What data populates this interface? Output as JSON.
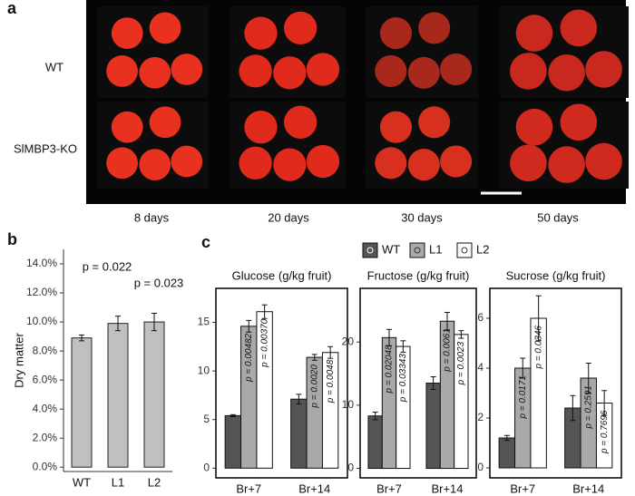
{
  "panel_labels": [
    "a",
    "b",
    "c"
  ],
  "panel_a": {
    "row_labels": [
      "WT",
      "SlMBP3-KO"
    ],
    "column_labels": [
      "8 days",
      "20 days",
      "30 days",
      "50 days"
    ]
  },
  "chart_data": [
    {
      "type": "bar",
      "y_label": "Dry matter",
      "categories": [
        "WT",
        "L1",
        "L2"
      ],
      "values": [
        8.9,
        9.9,
        10.0
      ],
      "errors": [
        0.2,
        0.5,
        0.6
      ],
      "color": "#c0c0c0",
      "ylim": [
        -0.3,
        15
      ],
      "yticks": [
        {
          "value": 0,
          "label": "0.0%"
        },
        {
          "value": 2,
          "label": "2.0%"
        },
        {
          "value": 4,
          "label": "4.0%"
        },
        {
          "value": 6,
          "label": "6.0%"
        },
        {
          "value": 8,
          "label": "8.0%"
        },
        {
          "value": 10,
          "label": "10.0%"
        },
        {
          "value": 12,
          "label": "12.0%"
        },
        {
          "value": 14,
          "label": "14.0%"
        }
      ],
      "annotations": [
        "p = 0.022",
        "p = 0.023"
      ]
    },
    {
      "type": "grouped-bar",
      "title": "Glucose (g/kg fruit)",
      "categories": [
        "Br+7",
        "Br+14"
      ],
      "ylim": [
        -1,
        18.5
      ],
      "yticks": [
        0,
        5,
        10,
        15
      ],
      "series": [
        {
          "name": "WT",
          "color": "#555555",
          "values": [
            5.4,
            7.1
          ],
          "errors": [
            0.1,
            0.5
          ]
        },
        {
          "name": "L1",
          "color": "#a9a9a9",
          "values": [
            14.6,
            11.4
          ],
          "errors": [
            0.6,
            0.3
          ],
          "p_labels": [
            "p = 0.00482",
            "p = 0.0020"
          ]
        },
        {
          "name": "L2",
          "color": "#ffffff",
          "values": [
            16.1,
            11.9
          ],
          "errors": [
            0.7,
            0.6
          ],
          "p_labels": [
            "p = 0.00370",
            "p = 0.0048"
          ]
        }
      ]
    },
    {
      "type": "grouped-bar",
      "title": "Fructose  (g/kg fruit)",
      "categories": [
        "Br+7",
        "Br+14"
      ],
      "ylim": [
        -1.5,
        28.5
      ],
      "yticks": [
        0,
        10,
        20
      ],
      "series": [
        {
          "name": "WT",
          "color": "#555555",
          "values": [
            8.3,
            13.5
          ],
          "errors": [
            0.6,
            1.0
          ]
        },
        {
          "name": "L1",
          "color": "#a9a9a9",
          "values": [
            20.7,
            23.3
          ],
          "errors": [
            1.3,
            1.4
          ],
          "p_labels": [
            "p = 0.02048",
            "p = 0.0061"
          ]
        },
        {
          "name": "L2",
          "color": "#ffffff",
          "values": [
            19.3,
            21.2
          ],
          "errors": [
            0.9,
            0.6
          ],
          "p_labels": [
            "p = 0.03343",
            "p = 0.0023"
          ]
        }
      ]
    },
    {
      "type": "grouped-bar",
      "title": "Sucrose (g/kg fruit)",
      "categories": [
        "Br+7",
        "Br+14"
      ],
      "ylim": [
        -0.4,
        7.2
      ],
      "yticks": [
        0,
        2,
        4,
        6
      ],
      "series": [
        {
          "name": "WT",
          "color": "#555555",
          "values": [
            1.2,
            2.4
          ],
          "errors": [
            0.1,
            0.5
          ]
        },
        {
          "name": "L1",
          "color": "#a9a9a9",
          "values": [
            4.0,
            3.6
          ],
          "errors": [
            0.4,
            0.6
          ],
          "p_labels": [
            "p = 0.0171",
            "p = 0.2591"
          ]
        },
        {
          "name": "L2",
          "color": "#ffffff",
          "values": [
            6.0,
            2.6
          ],
          "errors": [
            0.9,
            0.5
          ],
          "p_labels": [
            "p = 0.0346",
            "p = 0.7696"
          ]
        }
      ]
    }
  ]
}
